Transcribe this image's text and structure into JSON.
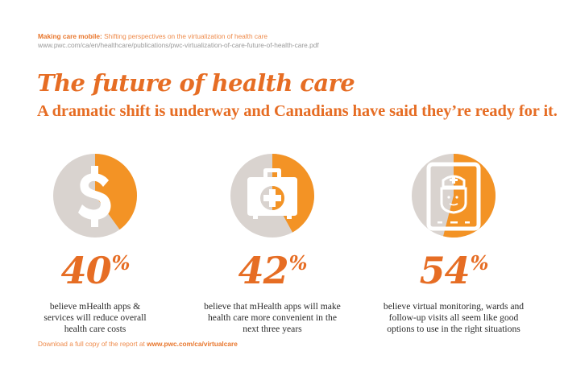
{
  "header": {
    "source_lead": "Making care mobile:",
    "source_title": "Shifting perspectives on the virtualization of health care",
    "source_url": "www.pwc.com/ca/en/healthcare/publications/pwc-virtualization-of-care-future-of-health-care.pdf",
    "title": "The future of health care",
    "subtitle": "A dramatic shift is underway and Canadians have said they’re ready for it."
  },
  "colors": {
    "accent": "#e66d24",
    "donut_fill": "#f39325",
    "donut_rest": "#d9d3cf",
    "icon": "#ffffff"
  },
  "stats": [
    {
      "icon": "dollar-icon",
      "value": 40,
      "number": "40",
      "sign": "%",
      "lines": [
        "believe mHealth apps &",
        "services will reduce overall",
        "health care costs"
      ]
    },
    {
      "icon": "medical-kit-icon",
      "value": 42,
      "number": "42",
      "sign": "%",
      "lines": [
        "believe that mHealth apps will make",
        "health care more convenient in the",
        "next three years"
      ]
    },
    {
      "icon": "tablet-nurse-icon",
      "value": 54,
      "number": "54",
      "sign": "%",
      "lines": [
        "believe virtual monitoring, wards and",
        "follow-up visits all seem like good",
        "options to use in the right situations"
      ]
    }
  ],
  "footer": {
    "text": "Download a full copy of the report at",
    "link": "www.pwc.com/ca/virtualcare"
  }
}
